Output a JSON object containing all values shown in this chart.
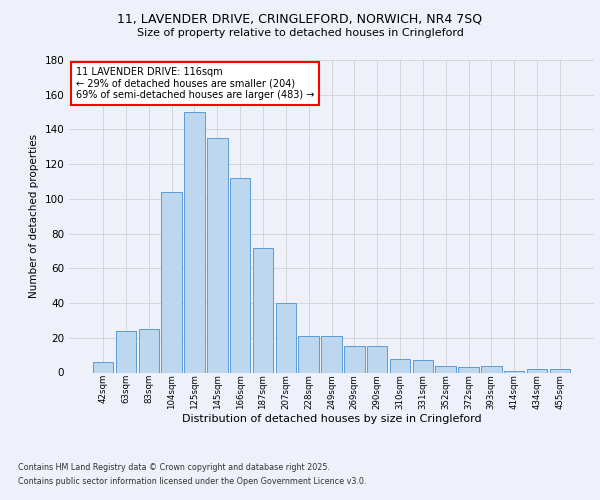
{
  "title_line1": "11, LAVENDER DRIVE, CRINGLEFORD, NORWICH, NR4 7SQ",
  "title_line2": "Size of property relative to detached houses in Cringleford",
  "xlabel": "Distribution of detached houses by size in Cringleford",
  "ylabel": "Number of detached properties",
  "annotation_title": "11 LAVENDER DRIVE: 116sqm",
  "annotation_line2": "← 29% of detached houses are smaller (204)",
  "annotation_line3": "69% of semi-detached houses are larger (483) →",
  "categories": [
    "42sqm",
    "63sqm",
    "83sqm",
    "104sqm",
    "125sqm",
    "145sqm",
    "166sqm",
    "187sqm",
    "207sqm",
    "228sqm",
    "249sqm",
    "269sqm",
    "290sqm",
    "310sqm",
    "331sqm",
    "352sqm",
    "372sqm",
    "393sqm",
    "414sqm",
    "434sqm",
    "455sqm"
  ],
  "values": [
    6,
    24,
    25,
    104,
    150,
    135,
    112,
    72,
    40,
    21,
    21,
    15,
    15,
    8,
    7,
    4,
    3,
    4,
    1,
    2,
    2
  ],
  "bar_color": "#bdd7ee",
  "bar_edge_color": "#5b9bd5",
  "background_color": "#eef0fa",
  "grid_color": "#cccccc",
  "ylim": [
    0,
    180
  ],
  "yticks": [
    0,
    20,
    40,
    60,
    80,
    100,
    120,
    140,
    160,
    180
  ],
  "footer_line1": "Contains HM Land Registry data © Crown copyright and database right 2025.",
  "footer_line2": "Contains public sector information licensed under the Open Government Licence v3.0."
}
